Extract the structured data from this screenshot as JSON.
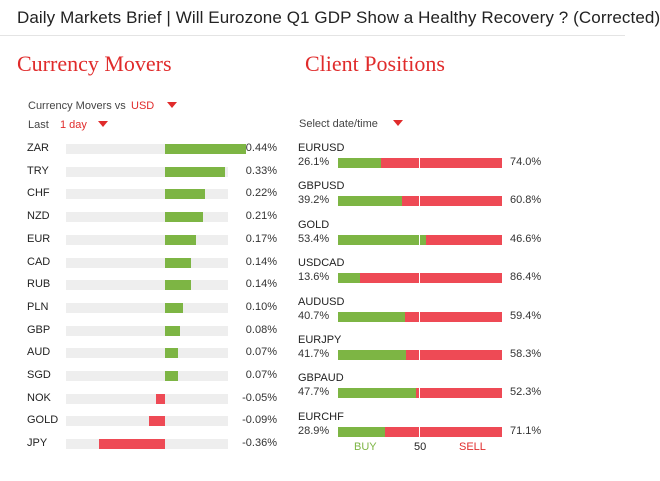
{
  "window": {
    "title": "Daily Markets Brief | Will Eurozone Q1 GDP Show a Healthy Recovery ? (Corrected)"
  },
  "currency_movers": {
    "title": "Currency Movers",
    "vs_label": "Currency Movers vs",
    "vs_value": "USD",
    "period_label": "Last",
    "period_value": "1 day",
    "rows": [
      {
        "code": "ZAR",
        "value": "0.44%",
        "change": 0.44
      },
      {
        "code": "TRY",
        "value": "0.33%",
        "change": 0.33
      },
      {
        "code": "CHF",
        "value": "0.22%",
        "change": 0.22
      },
      {
        "code": "NZD",
        "value": "0.21%",
        "change": 0.21
      },
      {
        "code": "EUR",
        "value": "0.17%",
        "change": 0.17
      },
      {
        "code": "CAD",
        "value": "0.14%",
        "change": 0.14
      },
      {
        "code": "RUB",
        "value": "0.14%",
        "change": 0.14
      },
      {
        "code": "PLN",
        "value": "0.10%",
        "change": 0.1
      },
      {
        "code": "GBP",
        "value": "0.08%",
        "change": 0.08
      },
      {
        "code": "AUD",
        "value": "0.07%",
        "change": 0.07
      },
      {
        "code": "SGD",
        "value": "0.07%",
        "change": 0.07
      },
      {
        "code": "NOK",
        "value": "-0.05%",
        "change": -0.05
      },
      {
        "code": "GOLD",
        "value": "-0.09%",
        "change": -0.09
      },
      {
        "code": "JPY",
        "value": "-0.36%",
        "change": -0.36
      }
    ]
  },
  "client_positions": {
    "title": "Client Positions",
    "date_label": "Select date/time",
    "rows": [
      {
        "pair": "EURUSD",
        "buy": "26.1%",
        "sell": "74.0%",
        "buy_pct": 26.1
      },
      {
        "pair": "GBPUSD",
        "buy": "39.2%",
        "sell": "60.8%",
        "buy_pct": 39.2
      },
      {
        "pair": "GOLD",
        "buy": "53.4%",
        "sell": "46.6%",
        "buy_pct": 53.4
      },
      {
        "pair": "USDCAD",
        "buy": "13.6%",
        "sell": "86.4%",
        "buy_pct": 13.6
      },
      {
        "pair": "AUDUSD",
        "buy": "40.7%",
        "sell": "59.4%",
        "buy_pct": 40.7
      },
      {
        "pair": "EURJPY",
        "buy": "41.7%",
        "sell": "58.3%",
        "buy_pct": 41.7
      },
      {
        "pair": "GBPAUD",
        "buy": "47.7%",
        "sell": "52.3%",
        "buy_pct": 47.7
      },
      {
        "pair": "EURCHF",
        "buy": "28.9%",
        "sell": "71.1%",
        "buy_pct": 28.9
      }
    ],
    "legend": {
      "buy": "BUY",
      "mid": "50",
      "sell": "SELL"
    }
  },
  "colors": {
    "positive": "#7db544",
    "negative": "#ee4a55",
    "accent": "#e02b2b",
    "track": "#eeeeee"
  }
}
